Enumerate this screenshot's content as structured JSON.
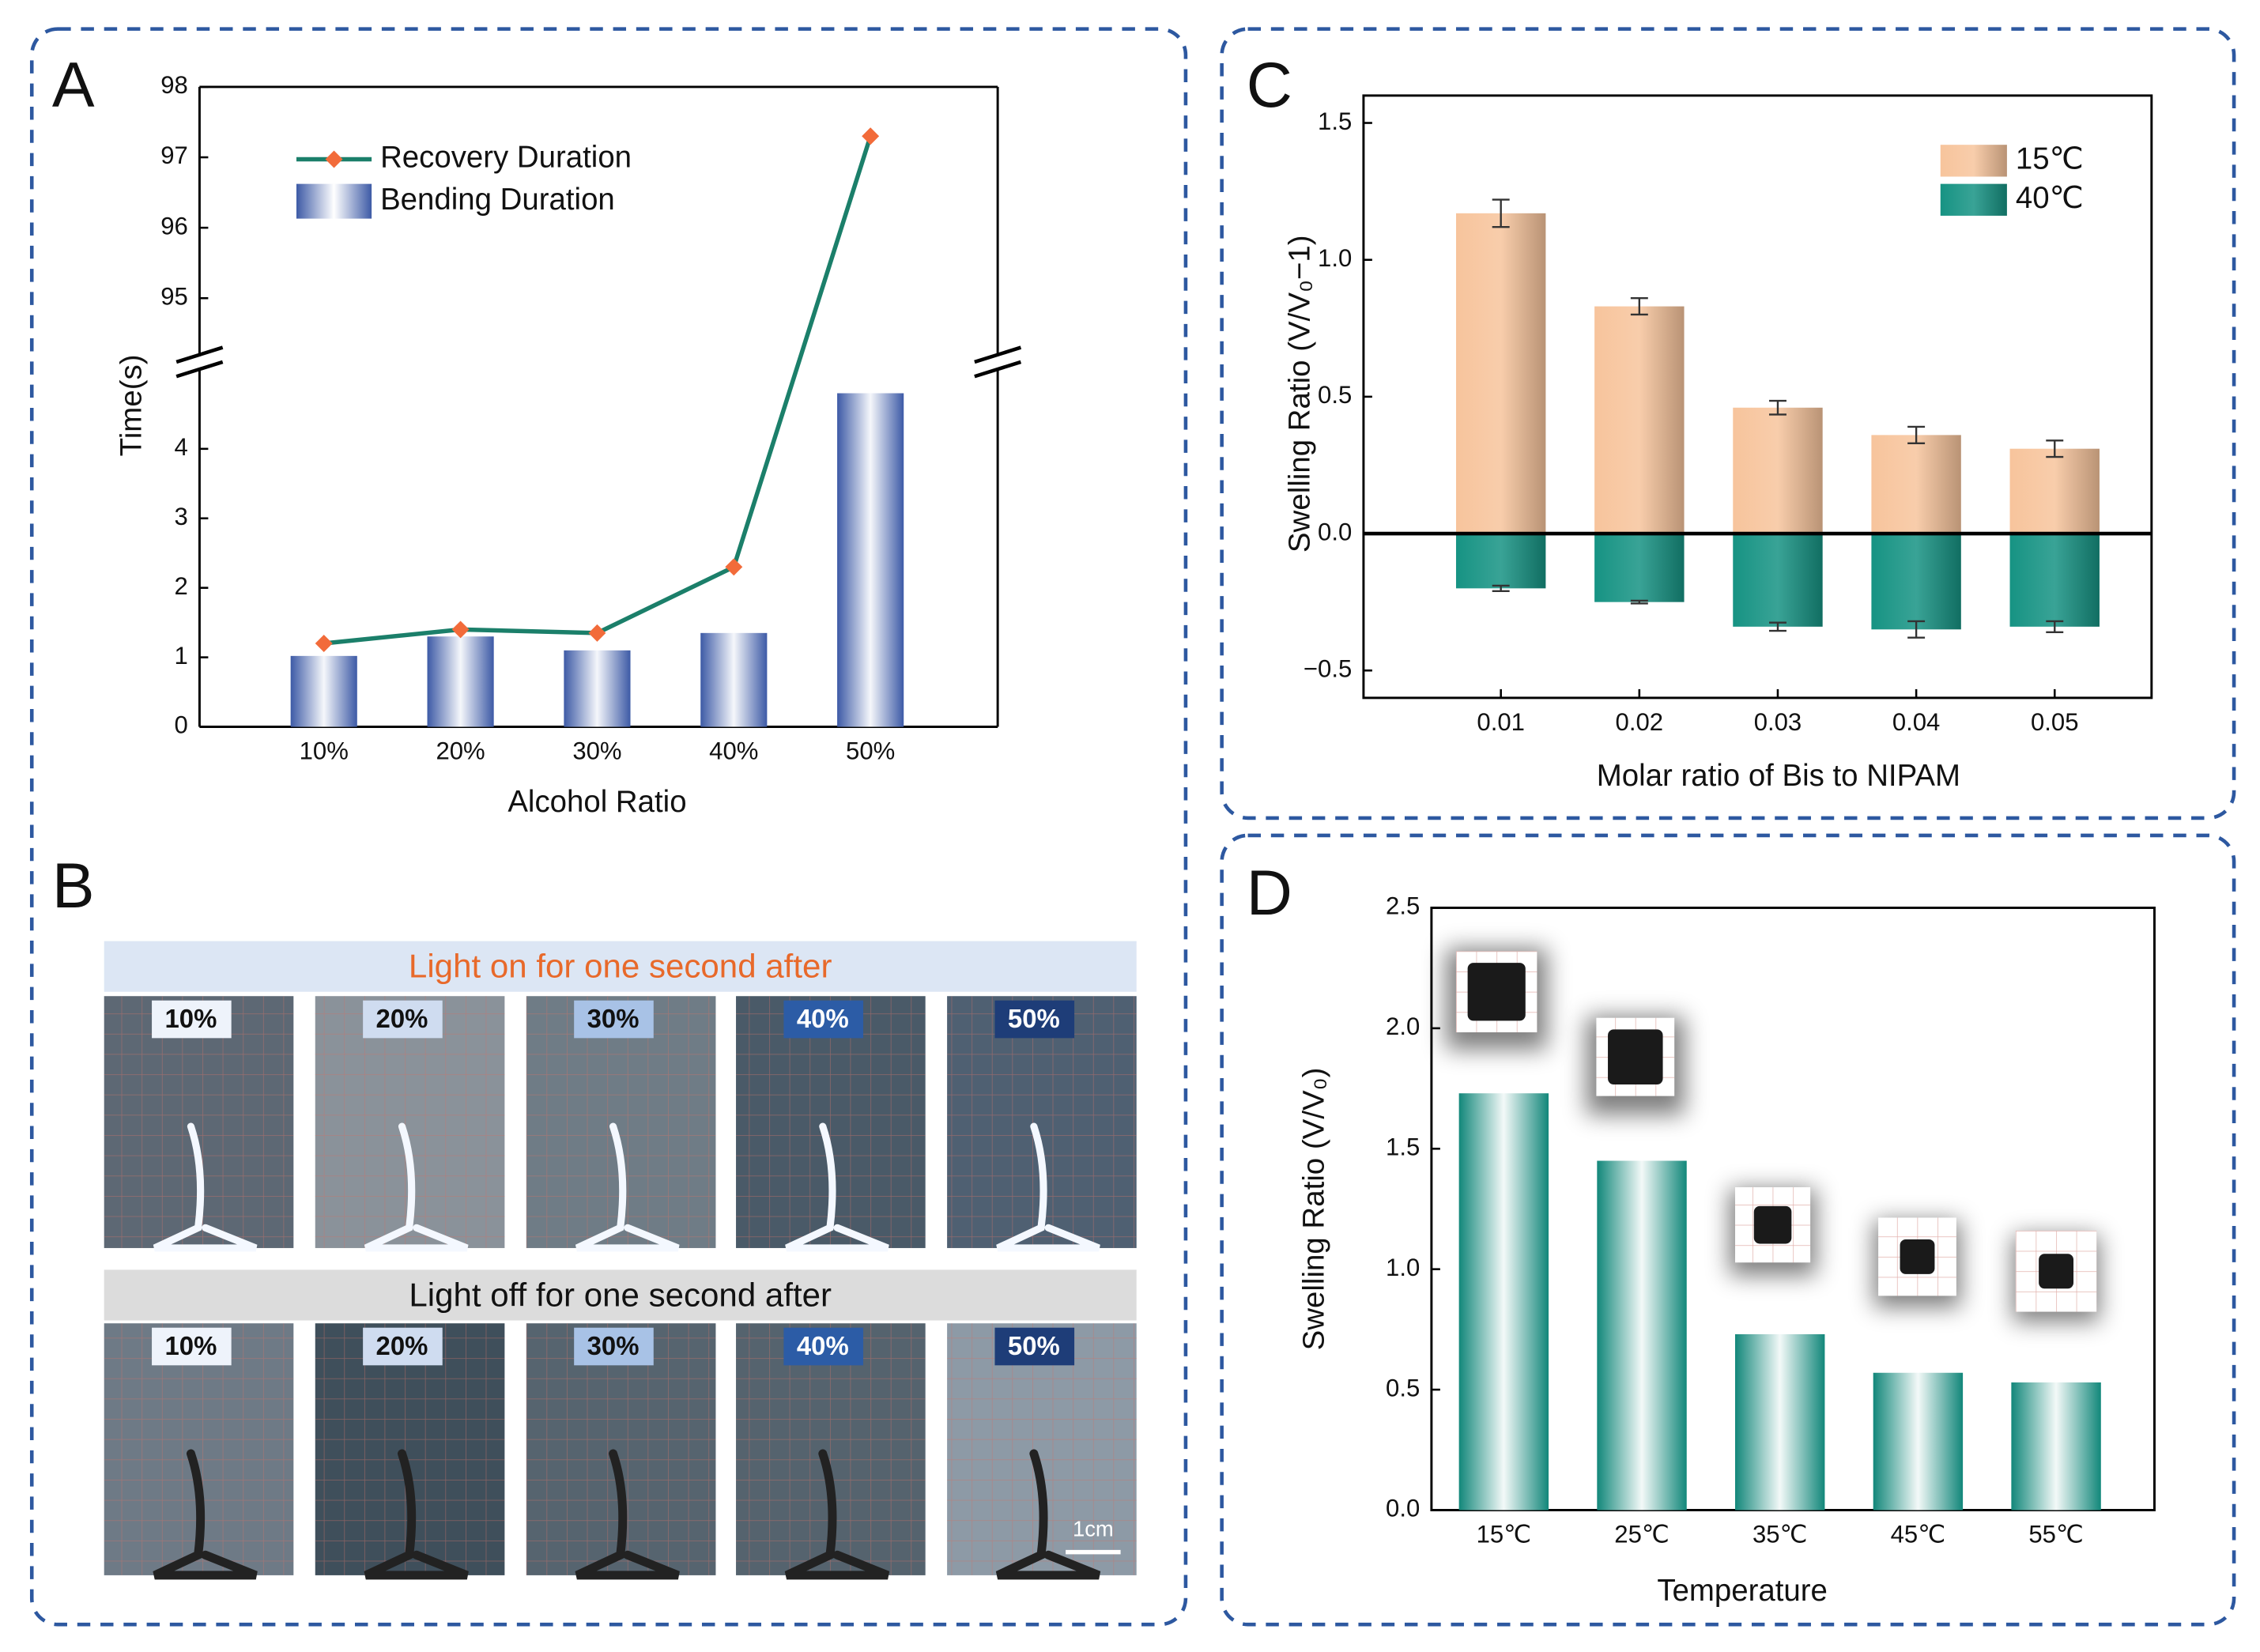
{
  "chart_data": [
    {
      "panel": "A",
      "type": "combo",
      "xlabel": "Alcohol Ratio",
      "ylabel": "Time(s)",
      "categories": [
        "10%",
        "20%",
        "30%",
        "40%",
        "50%"
      ],
      "ylim": [
        0,
        98
      ],
      "ybreak": [
        5,
        94.3
      ],
      "yticks": [
        0,
        1,
        2,
        3,
        4,
        95,
        96,
        97,
        98
      ],
      "series": [
        {
          "name": "Recovery Duration",
          "type": "line",
          "color": "#1b7f6a",
          "marker_color": "#f26b3a",
          "values": [
            1.2,
            1.4,
            1.35,
            2.3,
            97.3
          ]
        },
        {
          "name": "Bending Duration",
          "type": "bar",
          "color": "#3d5aa6",
          "values": [
            1.02,
            1.3,
            1.1,
            1.35,
            4.8
          ]
        }
      ]
    },
    {
      "panel": "C",
      "type": "bar",
      "xlabel": "Molar ratio of Bis to NIPAM",
      "ylabel": "Swelling Ratio (V/V₀−1)",
      "categories": [
        "0.01",
        "0.02",
        "0.03",
        "0.04",
        "0.05"
      ],
      "ylim": [
        -0.6,
        1.6
      ],
      "yticks": [
        {
          "value": -0.5,
          "label": "−0.5"
        },
        {
          "value": 0,
          "label": "0.0"
        },
        0.5,
        {
          "value": 1,
          "label": "1.0"
        },
        1.5
      ],
      "legend": "upper right",
      "series": [
        {
          "name": "15℃",
          "color": "#f7c49c",
          "values": [
            1.17,
            0.83,
            0.46,
            0.36,
            0.31
          ],
          "errors": [
            0.05,
            0.03,
            0.025,
            0.03,
            0.03
          ]
        },
        {
          "name": "40℃",
          "color": "#169383",
          "values": [
            -0.2,
            -0.25,
            -0.34,
            -0.35,
            -0.34
          ],
          "errors": [
            0.01,
            0.005,
            0.015,
            0.03,
            0.02
          ]
        }
      ]
    },
    {
      "panel": "D",
      "type": "bar",
      "xlabel": "Temperature",
      "ylabel": "Swelling Ratio (V/V₀)",
      "categories": [
        "15℃",
        "25℃",
        "35℃",
        "45℃",
        "55℃"
      ],
      "ylim": [
        0,
        2.5
      ],
      "yticks": [
        {
          "value": 0,
          "label": "0.0"
        },
        0.5,
        {
          "value": 1,
          "label": "1.0"
        },
        1.5,
        {
          "value": 2,
          "label": "2.0"
        },
        2.5
      ],
      "color": "#12877a",
      "values": [
        1.73,
        1.45,
        0.73,
        0.57,
        0.53
      ]
    }
  ],
  "panel_b": {
    "panel": "B",
    "rows": [
      {
        "title": "Light on for one second after",
        "labels": [
          "10%",
          "20%",
          "30%",
          "40%",
          "50%"
        ]
      },
      {
        "title": "Light off for one second after",
        "labels": [
          "10%",
          "20%",
          "30%",
          "40%",
          "50%"
        ]
      }
    ],
    "scale_bar": "1cm"
  }
}
